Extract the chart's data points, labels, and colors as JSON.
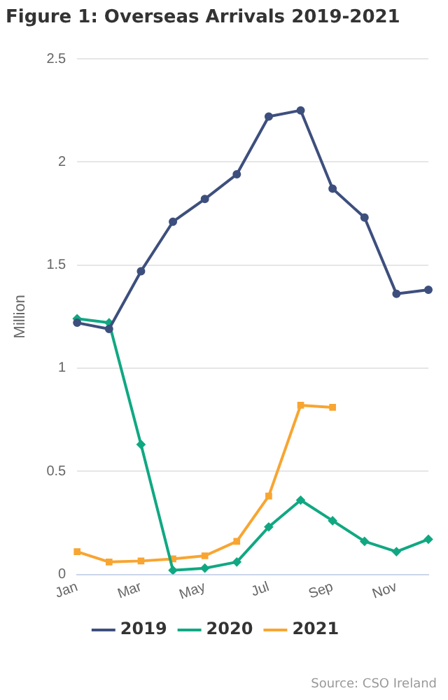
{
  "chart_data": {
    "type": "line",
    "title": "Figure 1: Overseas Arrivals 2019-2021",
    "ylabel": "Million",
    "categories": [
      "Jan",
      null,
      "Mar",
      null,
      "May",
      null,
      "Jul",
      null,
      "Sep",
      null,
      "Nov",
      null
    ],
    "series": [
      {
        "name": "2019",
        "color": "#3d4f7d",
        "marker": "circle",
        "values": [
          1.22,
          1.19,
          1.47,
          1.71,
          1.82,
          1.94,
          2.22,
          2.25,
          1.87,
          1.73,
          1.36,
          1.38
        ]
      },
      {
        "name": "2020",
        "color": "#10a882",
        "marker": "diamond",
        "values": [
          1.24,
          1.22,
          0.63,
          0.02,
          0.03,
          0.06,
          0.23,
          0.36,
          0.26,
          0.16,
          0.11,
          0.17
        ]
      },
      {
        "name": "2021",
        "color": "#f8a531",
        "marker": "square",
        "values": [
          0.11,
          0.06,
          0.065,
          0.075,
          0.09,
          0.16,
          0.38,
          0.82,
          0.81,
          null,
          null,
          null
        ]
      }
    ],
    "ylim": [
      0,
      2.5
    ],
    "yticks": [
      0,
      0.5,
      1,
      1.5,
      2,
      2.5
    ],
    "grid": "y",
    "legend": "bottom",
    "line_style": "solid",
    "annotations": [
      "Source: CSO Ireland"
    ]
  }
}
